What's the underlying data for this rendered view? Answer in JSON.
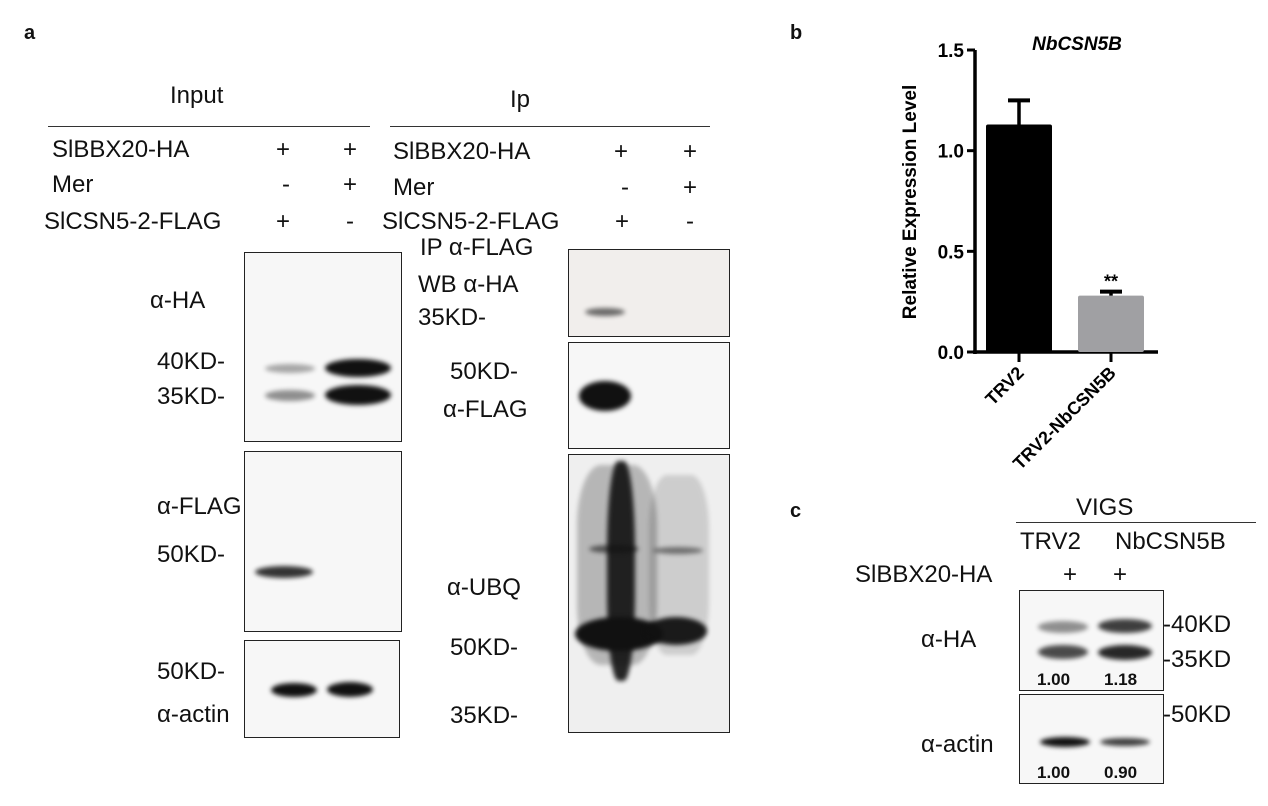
{
  "panels": {
    "a": "a",
    "b": "b",
    "c": "c"
  },
  "panel_a": {
    "input": {
      "header": "Input",
      "rows": [
        {
          "label": "SlBBX20-HA",
          "lane1": "+",
          "lane2": "+"
        },
        {
          "label": "Mer",
          "lane1": "-",
          "lane2": "+"
        },
        {
          "label": "SlCSN5-2-FLAG",
          "lane1": "+",
          "lane2": "-"
        }
      ],
      "blots": {
        "ha": {
          "antibody": "α-HA",
          "markers": [
            "40KD-",
            "35KD-"
          ]
        },
        "flag": {
          "antibody": "α-FLAG",
          "markers": [
            "50KD-"
          ]
        },
        "actin": {
          "antibody": "α-actin",
          "markers": [
            "50KD-"
          ]
        }
      }
    },
    "ip": {
      "header": "Ip",
      "rows": [
        {
          "label": "SlBBX20-HA",
          "lane1": "+",
          "lane2": "+"
        },
        {
          "label": "Mer",
          "lane1": "-",
          "lane2": "+"
        },
        {
          "label": "SlCSN5-2-FLAG",
          "lane1": "+",
          "lane2": "-"
        }
      ],
      "blots": {
        "ha": {
          "ip_label": "IP α-FLAG",
          "wb_label": "WB α-HA",
          "markers": [
            "35KD-"
          ]
        },
        "flag": {
          "antibody": "α-FLAG",
          "markers": [
            "50KD-"
          ]
        },
        "ubq": {
          "antibody": "α-UBQ",
          "markers": [
            "50KD-",
            "35KD-"
          ]
        }
      }
    }
  },
  "chart_data": {
    "type": "bar",
    "title": "NbCSN5B",
    "ylabel": "Relative Expression  Level",
    "xlabel": "",
    "categories": [
      "TRV2",
      "TRV2-NbCSN5B"
    ],
    "values": [
      1.13,
      0.28
    ],
    "errors": [
      0.12,
      0.02
    ],
    "colors": [
      "#000000",
      "#a0a0a3"
    ],
    "annotations": [
      "",
      "**"
    ],
    "ylim": [
      0,
      1.5
    ],
    "yticks": [
      "0.0",
      "0.5",
      "1.0",
      "1.5"
    ],
    "grid": false
  },
  "panel_c": {
    "group_header": "VIGS",
    "lanes": [
      "TRV2",
      "NbCSN5B"
    ],
    "row": {
      "label": "SlBBX20-HA",
      "lane1": "+",
      "lane2": "+"
    },
    "blots": {
      "ha": {
        "antibody": "α-HA",
        "markers": [
          "-40KD",
          "-35KD"
        ],
        "quant": [
          "1.00",
          "1.18"
        ]
      },
      "actin": {
        "antibody": "α-actin",
        "markers": [
          "-50KD"
        ],
        "quant": [
          "1.00",
          "0.90"
        ]
      }
    }
  }
}
